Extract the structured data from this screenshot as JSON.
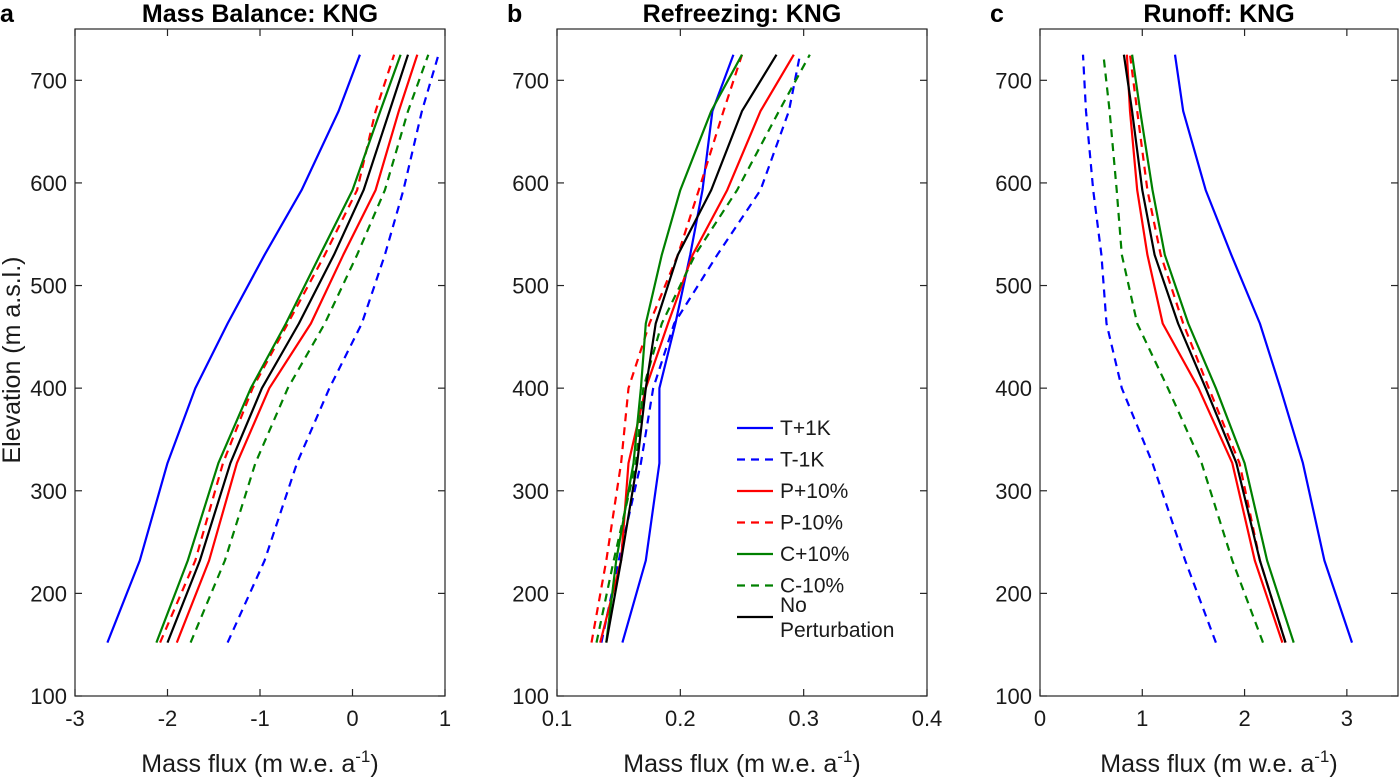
{
  "figure": {
    "ylabel": "Elevation (m a.s.l.)",
    "xlabel_main": "Mass flux (m w.e. a",
    "xlabel_sup": "-1",
    "xlabel_end": ")"
  },
  "legend": [
    {
      "label": "T+1K",
      "color": "#0000ff",
      "dashed": false
    },
    {
      "label": "T-1K",
      "color": "#0000ff",
      "dashed": true
    },
    {
      "label": "P+10%",
      "color": "#ff0000",
      "dashed": false
    },
    {
      "label": "P-10%",
      "color": "#ff0000",
      "dashed": true
    },
    {
      "label": "C+10%",
      "color": "#008000",
      "dashed": false
    },
    {
      "label": "C-10%",
      "color": "#008000",
      "dashed": true
    },
    {
      "label": "No",
      "label2": "Perturbation",
      "color": "#000000",
      "dashed": false
    }
  ],
  "chart_data": [
    {
      "type": "line",
      "letter": "a",
      "title": "Mass Balance: KNG",
      "xlabel": "Mass flux (m w.e. a-1)",
      "ylabel": "Elevation (m a.s.l.)",
      "xlim": [
        -3,
        1
      ],
      "ylim": [
        100,
        750
      ],
      "xticks": [
        -3,
        -2,
        -1,
        0,
        1
      ],
      "xtick_labels": [
        "-3",
        "-2",
        "-1",
        "0",
        "1"
      ],
      "yticks": [
        100,
        200,
        300,
        400,
        500,
        600,
        700
      ],
      "ytick_labels": [
        "100",
        "200",
        "300",
        "400",
        "500",
        "600",
        "700"
      ],
      "series": [
        {
          "name": "T+1K",
          "color": "#0000ff",
          "dashed": false,
          "points": [
            [
              -2.65,
              152
            ],
            [
              -2.3,
              232
            ],
            [
              -2.0,
              327
            ],
            [
              -1.7,
              400
            ],
            [
              -1.35,
              463
            ],
            [
              -0.95,
              530
            ],
            [
              -0.55,
              593
            ],
            [
              -0.15,
              670
            ],
            [
              0.08,
              725
            ]
          ]
        },
        {
          "name": "T-1K",
          "color": "#0000ff",
          "dashed": true,
          "points": [
            [
              -1.35,
              152
            ],
            [
              -0.95,
              232
            ],
            [
              -0.6,
              327
            ],
            [
              -0.25,
              400
            ],
            [
              0.1,
              463
            ],
            [
              0.35,
              530
            ],
            [
              0.55,
              593
            ],
            [
              0.75,
              670
            ],
            [
              0.93,
              725
            ]
          ]
        },
        {
          "name": "P+10%",
          "color": "#ff0000",
          "dashed": false,
          "points": [
            [
              -1.9,
              152
            ],
            [
              -1.55,
              232
            ],
            [
              -1.25,
              327
            ],
            [
              -0.9,
              400
            ],
            [
              -0.45,
              463
            ],
            [
              -0.1,
              530
            ],
            [
              0.25,
              593
            ],
            [
              0.5,
              670
            ],
            [
              0.7,
              725
            ]
          ]
        },
        {
          "name": "P-10%",
          "color": "#ff0000",
          "dashed": true,
          "points": [
            [
              -2.08,
              152
            ],
            [
              -1.7,
              232
            ],
            [
              -1.4,
              327
            ],
            [
              -1.08,
              400
            ],
            [
              -0.7,
              463
            ],
            [
              -0.3,
              530
            ],
            [
              0.05,
              593
            ],
            [
              0.25,
              670
            ],
            [
              0.45,
              725
            ]
          ]
        },
        {
          "name": "C+10%",
          "color": "#008000",
          "dashed": false,
          "points": [
            [
              -2.12,
              152
            ],
            [
              -1.78,
              232
            ],
            [
              -1.45,
              327
            ],
            [
              -1.1,
              400
            ],
            [
              -0.72,
              463
            ],
            [
              -0.35,
              530
            ],
            [
              0.0,
              593
            ],
            [
              0.3,
              670
            ],
            [
              0.52,
              725
            ]
          ]
        },
        {
          "name": "C-10%",
          "color": "#008000",
          "dashed": true,
          "points": [
            [
              -1.75,
              152
            ],
            [
              -1.38,
              232
            ],
            [
              -1.05,
              327
            ],
            [
              -0.7,
              400
            ],
            [
              -0.3,
              463
            ],
            [
              0.05,
              530
            ],
            [
              0.35,
              593
            ],
            [
              0.6,
              670
            ],
            [
              0.82,
              725
            ]
          ]
        },
        {
          "name": "No Perturbation",
          "color": "#000000",
          "dashed": false,
          "points": [
            [
              -2.0,
              152
            ],
            [
              -1.65,
              232
            ],
            [
              -1.32,
              327
            ],
            [
              -0.98,
              400
            ],
            [
              -0.58,
              463
            ],
            [
              -0.2,
              530
            ],
            [
              0.12,
              593
            ],
            [
              0.4,
              670
            ],
            [
              0.6,
              725
            ]
          ]
        }
      ]
    },
    {
      "type": "line",
      "letter": "b",
      "title": "Refreezing: KNG",
      "xlabel": "Mass flux (m w.e. a-1)",
      "ylabel": "",
      "xlim": [
        0.1,
        0.4
      ],
      "ylim": [
        100,
        750
      ],
      "xticks": [
        0.1,
        0.2,
        0.3,
        0.4
      ],
      "xtick_labels": [
        "0.1",
        "0.2",
        "0.3",
        "0.4"
      ],
      "yticks": [
        100,
        200,
        300,
        400,
        500,
        600,
        700
      ],
      "ytick_labels": [
        "100",
        "200",
        "300",
        "400",
        "500",
        "600",
        "700"
      ],
      "series": [
        {
          "name": "T+1K",
          "color": "#0000ff",
          "dashed": false,
          "points": [
            [
              0.153,
              152
            ],
            [
              0.172,
              232
            ],
            [
              0.183,
              327
            ],
            [
              0.183,
              400
            ],
            [
              0.196,
              463
            ],
            [
              0.208,
              530
            ],
            [
              0.218,
              593
            ],
            [
              0.226,
              670
            ],
            [
              0.243,
              725
            ]
          ]
        },
        {
          "name": "T-1K",
          "color": "#0000ff",
          "dashed": true,
          "points": [
            [
              0.136,
              152
            ],
            [
              0.15,
              232
            ],
            [
              0.168,
              327
            ],
            [
              0.178,
              400
            ],
            [
              0.195,
              463
            ],
            [
              0.23,
              530
            ],
            [
              0.265,
              593
            ],
            [
              0.288,
              670
            ],
            [
              0.297,
              725
            ]
          ]
        },
        {
          "name": "P+10%",
          "color": "#ff0000",
          "dashed": false,
          "points": [
            [
              0.135,
              152
            ],
            [
              0.152,
              232
            ],
            [
              0.158,
              327
            ],
            [
              0.172,
              400
            ],
            [
              0.19,
              463
            ],
            [
              0.21,
              530
            ],
            [
              0.238,
              593
            ],
            [
              0.265,
              670
            ],
            [
              0.292,
              725
            ]
          ]
        },
        {
          "name": "P-10%",
          "color": "#ff0000",
          "dashed": true,
          "points": [
            [
              0.128,
              152
            ],
            [
              0.14,
              232
            ],
            [
              0.152,
              327
            ],
            [
              0.158,
              400
            ],
            [
              0.175,
              463
            ],
            [
              0.198,
              530
            ],
            [
              0.215,
              593
            ],
            [
              0.235,
              670
            ],
            [
              0.25,
              725
            ]
          ]
        },
        {
          "name": "C+10%",
          "color": "#008000",
          "dashed": false,
          "points": [
            [
              0.14,
              152
            ],
            [
              0.148,
              232
            ],
            [
              0.162,
              327
            ],
            [
              0.168,
              400
            ],
            [
              0.172,
              463
            ],
            [
              0.185,
              530
            ],
            [
              0.2,
              593
            ],
            [
              0.225,
              670
            ],
            [
              0.25,
              725
            ]
          ]
        },
        {
          "name": "C-10%",
          "color": "#008000",
          "dashed": true,
          "points": [
            [
              0.132,
              152
            ],
            [
              0.146,
              232
            ],
            [
              0.164,
              327
            ],
            [
              0.17,
              400
            ],
            [
              0.185,
              463
            ],
            [
              0.212,
              530
            ],
            [
              0.246,
              593
            ],
            [
              0.28,
              670
            ],
            [
              0.305,
              725
            ]
          ]
        },
        {
          "name": "No Perturbation",
          "color": "#000000",
          "dashed": false,
          "points": [
            [
              0.14,
              152
            ],
            [
              0.152,
              232
            ],
            [
              0.165,
              327
            ],
            [
              0.172,
              400
            ],
            [
              0.18,
              463
            ],
            [
              0.198,
              530
            ],
            [
              0.225,
              593
            ],
            [
              0.25,
              670
            ],
            [
              0.278,
              725
            ]
          ]
        }
      ]
    },
    {
      "type": "line",
      "letter": "c",
      "title": "Runoff: KNG",
      "xlabel": "Mass flux (m w.e. a-1)",
      "ylabel": "",
      "xlim": [
        0,
        3.5
      ],
      "ylim": [
        100,
        750
      ],
      "xticks": [
        0,
        1,
        2,
        3
      ],
      "xtick_labels": [
        "0",
        "1",
        "2",
        "3"
      ],
      "yticks": [
        100,
        200,
        300,
        400,
        500,
        600,
        700
      ],
      "ytick_labels": [
        "100",
        "200",
        "300",
        "400",
        "500",
        "600",
        "700"
      ],
      "series": [
        {
          "name": "T+1K",
          "color": "#0000ff",
          "dashed": false,
          "points": [
            [
              3.05,
              152
            ],
            [
              2.78,
              232
            ],
            [
              2.57,
              327
            ],
            [
              2.35,
              400
            ],
            [
              2.15,
              463
            ],
            [
              1.87,
              530
            ],
            [
              1.62,
              593
            ],
            [
              1.4,
              670
            ],
            [
              1.32,
              725
            ]
          ]
        },
        {
          "name": "T-1K",
          "color": "#0000ff",
          "dashed": true,
          "points": [
            [
              1.72,
              152
            ],
            [
              1.42,
              232
            ],
            [
              1.1,
              327
            ],
            [
              0.8,
              400
            ],
            [
              0.65,
              463
            ],
            [
              0.6,
              530
            ],
            [
              0.52,
              593
            ],
            [
              0.45,
              670
            ],
            [
              0.42,
              725
            ]
          ]
        },
        {
          "name": "P+10%",
          "color": "#ff0000",
          "dashed": false,
          "points": [
            [
              2.37,
              152
            ],
            [
              2.1,
              232
            ],
            [
              1.88,
              327
            ],
            [
              1.55,
              400
            ],
            [
              1.2,
              463
            ],
            [
              1.05,
              530
            ],
            [
              0.95,
              593
            ],
            [
              0.88,
              670
            ],
            [
              0.85,
              725
            ]
          ]
        },
        {
          "name": "P-10%",
          "color": "#ff0000",
          "dashed": true,
          "points": [
            [
              2.4,
              152
            ],
            [
              2.15,
              232
            ],
            [
              1.95,
              327
            ],
            [
              1.65,
              400
            ],
            [
              1.4,
              463
            ],
            [
              1.18,
              530
            ],
            [
              1.05,
              593
            ],
            [
              0.95,
              670
            ],
            [
              0.88,
              725
            ]
          ]
        },
        {
          "name": "C+10%",
          "color": "#008000",
          "dashed": false,
          "points": [
            [
              2.48,
              152
            ],
            [
              2.22,
              232
            ],
            [
              2.0,
              327
            ],
            [
              1.72,
              400
            ],
            [
              1.45,
              463
            ],
            [
              1.22,
              530
            ],
            [
              1.1,
              593
            ],
            [
              0.98,
              670
            ],
            [
              0.9,
              725
            ]
          ]
        },
        {
          "name": "C-10%",
          "color": "#008000",
          "dashed": true,
          "points": [
            [
              2.18,
              152
            ],
            [
              1.88,
              232
            ],
            [
              1.58,
              327
            ],
            [
              1.25,
              400
            ],
            [
              0.95,
              463
            ],
            [
              0.8,
              530
            ],
            [
              0.75,
              593
            ],
            [
              0.68,
              670
            ],
            [
              0.62,
              725
            ]
          ]
        },
        {
          "name": "No Perturbation",
          "color": "#000000",
          "dashed": false,
          "points": [
            [
              2.4,
              152
            ],
            [
              2.15,
              232
            ],
            [
              1.92,
              327
            ],
            [
              1.62,
              400
            ],
            [
              1.35,
              463
            ],
            [
              1.12,
              530
            ],
            [
              1.0,
              593
            ],
            [
              0.9,
              670
            ],
            [
              0.82,
              725
            ]
          ]
        }
      ]
    }
  ]
}
